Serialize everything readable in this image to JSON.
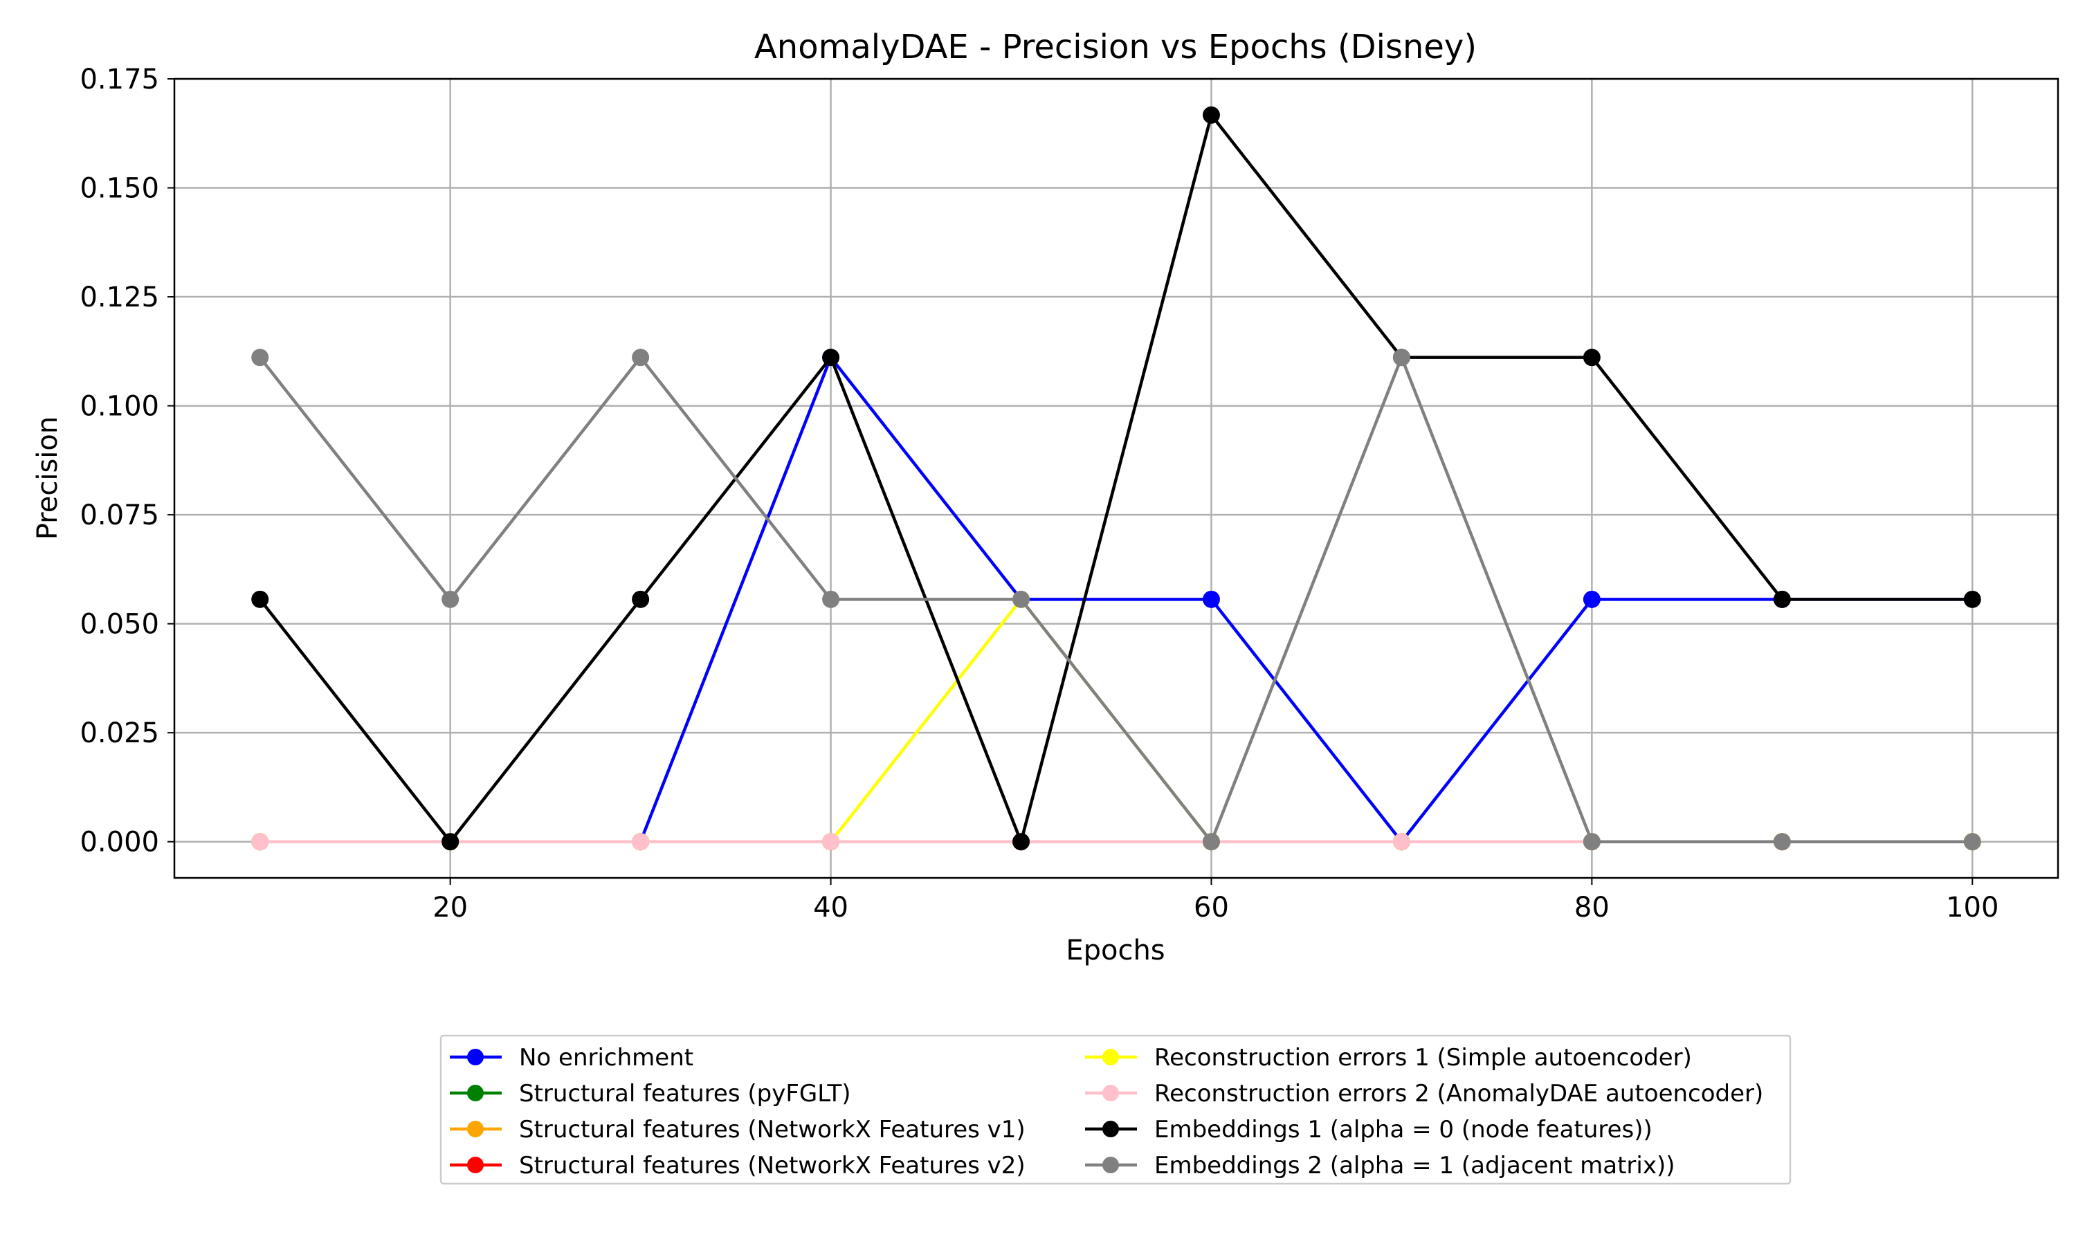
{
  "chart_data": {
    "type": "line",
    "title": "AnomalyDAE - Precision vs Epochs (Disney)",
    "xlabel": "Epochs",
    "ylabel": "Precision",
    "xlim": [
      5.5,
      104.5
    ],
    "ylim": [
      -0.0083,
      0.175
    ],
    "xticks": [
      20,
      40,
      60,
      80,
      100
    ],
    "yticks": [
      0.0,
      0.025,
      0.05,
      0.075,
      0.1,
      0.125,
      0.15,
      0.175
    ],
    "ytick_labels": [
      "0.000",
      "0.025",
      "0.050",
      "0.075",
      "0.100",
      "0.125",
      "0.150",
      "0.175"
    ],
    "xtick_labels": [
      "20",
      "40",
      "60",
      "80",
      "100"
    ],
    "grid": true,
    "legend_placement": "bottom-center, below plot, two columns",
    "x": [
      10,
      20,
      30,
      40,
      50,
      60,
      70,
      80,
      90,
      100
    ],
    "series": [
      {
        "name": "No enrichment",
        "color": "#0000ff",
        "values": [
          0.0,
          0.0,
          0.0,
          0.1111,
          0.0556,
          0.0556,
          0.0,
          0.0556,
          0.0556,
          0.0556
        ]
      },
      {
        "name": "Structural features (pyFGLT)",
        "color": "#008000",
        "values": [
          0,
          0,
          0,
          0,
          0,
          0,
          0,
          0,
          0,
          0
        ]
      },
      {
        "name": "Structural features (NetworkX Features v1)",
        "color": "#ffa500",
        "values": [
          0,
          0,
          0,
          0,
          0,
          0,
          0,
          0,
          0,
          0
        ]
      },
      {
        "name": "Structural features (NetworkX Features v2)",
        "color": "#ff0000",
        "values": [
          0,
          0,
          0,
          0,
          0,
          0,
          0,
          0,
          0,
          0
        ]
      },
      {
        "name": "Reconstruction errors 1 (Simple autoencoder)",
        "color": "#ffff00",
        "values": [
          0.0,
          0.0,
          0.0,
          0.0,
          0.0556,
          0.0,
          0.0,
          0.0,
          0.0,
          0.0
        ]
      },
      {
        "name": "Reconstruction errors 2 (AnomalyDAE autoencoder)",
        "color": "#ffc0cb",
        "values": [
          0,
          0,
          0,
          0,
          0,
          0,
          0,
          0,
          0,
          0
        ]
      },
      {
        "name": "Embeddings 1 (alpha = 0 (node features))",
        "color": "#000000",
        "values": [
          0.0556,
          0.0,
          0.0556,
          0.1111,
          0.0,
          0.1667,
          0.1111,
          0.1111,
          0.0556,
          0.0556
        ]
      },
      {
        "name": "Embeddings 2 (alpha = 1 (adjacent matrix))",
        "color": "#808080",
        "values": [
          0.1111,
          0.0556,
          0.1111,
          0.0556,
          0.0556,
          0.0,
          0.1111,
          0.0,
          0.0,
          0.0
        ]
      }
    ],
    "visible_markers": {
      "No enrichment": [
        false,
        false,
        false,
        true,
        false,
        true,
        false,
        true,
        true,
        false
      ],
      "Reconstruction errors 2 (AnomalyDAE autoencoder)": [
        true,
        false,
        true,
        true,
        false,
        false,
        true,
        true,
        false,
        false
      ]
    }
  }
}
